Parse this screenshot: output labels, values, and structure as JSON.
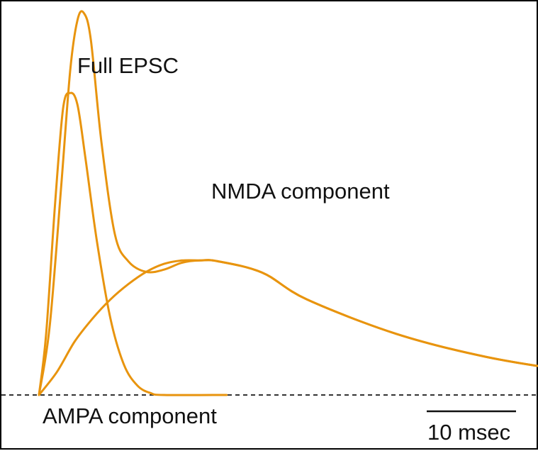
{
  "chart_data": {
    "type": "line",
    "title": "",
    "xlabel": "",
    "ylabel": "",
    "grid": false,
    "legend": "none",
    "scale_bar": {
      "value": 10,
      "unit": "msec",
      "label": "10 msec"
    },
    "baseline": {
      "style": "dashed",
      "color": "#333333"
    },
    "series": [
      {
        "name": "Full EPSC",
        "color": "#E8940E",
        "points": [
          [
            0,
            0
          ],
          [
            1.2,
            0.18
          ],
          [
            2.5,
            0.55
          ],
          [
            3.5,
            0.85
          ],
          [
            4.3,
            0.98
          ],
          [
            5,
            1.0
          ],
          [
            5.8,
            0.93
          ],
          [
            7,
            0.66
          ],
          [
            8.5,
            0.42
          ],
          [
            10,
            0.35
          ],
          [
            12,
            0.322
          ],
          [
            14,
            0.328
          ],
          [
            16,
            0.346
          ],
          [
            18,
            0.352
          ],
          [
            20,
            0.35
          ],
          [
            25,
            0.32
          ],
          [
            30,
            0.25
          ],
          [
            40,
            0.16
          ],
          [
            50,
            0.1
          ],
          [
            60,
            0.062
          ],
          [
            70,
            0.035
          ],
          [
            76,
            0.022
          ]
        ]
      },
      {
        "name": "AMPA component",
        "color": "#E8940E",
        "points": [
          [
            0,
            0
          ],
          [
            0.8,
            0.16
          ],
          [
            1.8,
            0.5
          ],
          [
            2.7,
            0.75
          ],
          [
            3.5,
            0.79
          ],
          [
            4.3,
            0.76
          ],
          [
            5.2,
            0.62
          ],
          [
            6.5,
            0.4
          ],
          [
            8,
            0.2
          ],
          [
            9.5,
            0.08
          ],
          [
            11,
            0.025
          ],
          [
            12.5,
            0.005
          ],
          [
            14,
            0
          ],
          [
            21,
            0
          ]
        ]
      },
      {
        "name": "NMDA component",
        "color": "#E8940E",
        "points": [
          [
            0,
            0
          ],
          [
            2,
            0.06
          ],
          [
            4,
            0.14
          ],
          [
            6,
            0.2
          ],
          [
            8,
            0.25
          ],
          [
            10,
            0.29
          ],
          [
            12,
            0.322
          ],
          [
            14,
            0.343
          ],
          [
            16,
            0.352
          ],
          [
            18,
            0.352
          ],
          [
            20,
            0.35
          ],
          [
            25,
            0.32
          ],
          [
            30,
            0.25
          ],
          [
            40,
            0.16
          ],
          [
            50,
            0.1
          ],
          [
            60,
            0.062
          ],
          [
            70,
            0.035
          ],
          [
            76,
            0.022
          ]
        ]
      }
    ],
    "annotations": [
      {
        "text": "Full EPSC",
        "series": "Full EPSC"
      },
      {
        "text": "NMDA component",
        "series": "NMDA component"
      },
      {
        "text": "AMPA component",
        "series": "AMPA component"
      }
    ]
  }
}
